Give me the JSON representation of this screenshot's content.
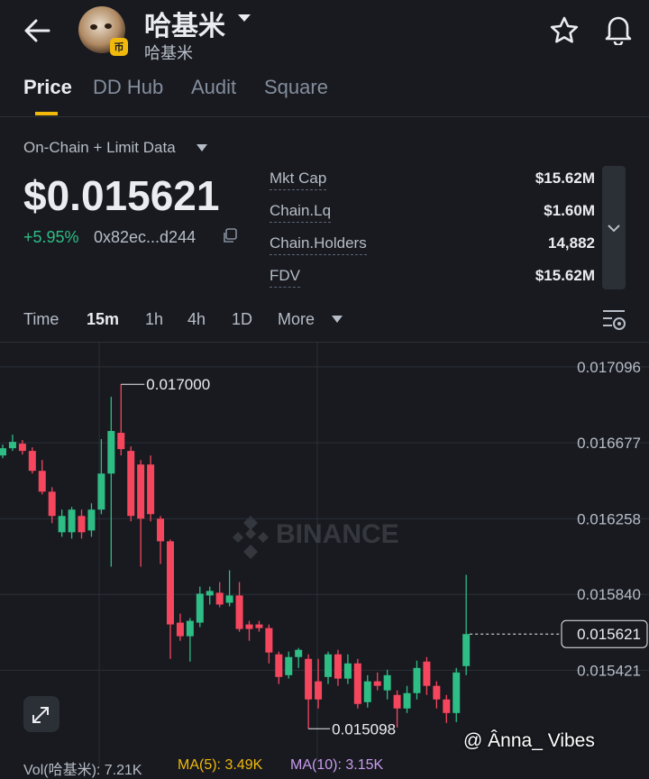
{
  "header": {
    "title": "哈基米",
    "subtitle": "哈基米"
  },
  "tabs": [
    "Price",
    "DD Hub",
    "Audit",
    "Square"
  ],
  "data_source": "On-Chain + Limit Data",
  "price": "$0.015621",
  "change": "+5.95%",
  "address": "0x82ec...d244",
  "stats": [
    {
      "label": "Mkt Cap",
      "value": "$15.62M"
    },
    {
      "label": "Chain.Lq",
      "value": "$1.60M"
    },
    {
      "label": "Chain.Holders",
      "value": "14,882"
    },
    {
      "label": "FDV",
      "value": "$15.62M"
    }
  ],
  "intervals": [
    "Time",
    "15m",
    "1h",
    "4h",
    "1D",
    "More"
  ],
  "chart_data": {
    "type": "candlestick",
    "watermark": "BINANCE",
    "open": [
      0.016607,
      0.016647,
      0.016672,
      0.016632,
      0.016522,
      0.016407,
      0.016183,
      0.016183,
      0.016273,
      0.016193,
      0.016308,
      0.016507,
      0.016732,
      0.016632,
      0.016557,
      0.016557,
      0.016258,
      0.016133,
      0.015684,
      0.015609,
      0.015684,
      0.015834,
      0.015849,
      0.015794,
      0.015834,
      0.015674,
      0.015674,
      0.015654,
      0.015509,
      0.015394,
      0.015494,
      0.015484,
      0.01536,
      0.015384,
      0.015509,
      0.015375,
      0.015459,
      0.015245,
      0.01536,
      0.01531,
      0.015285,
      0.01521,
      0.015295,
      0.015469,
      0.015335,
      0.01526,
      0.015185,
      0.015444
    ],
    "high": [
      0.016667,
      0.016722,
      0.016692,
      0.016652,
      0.016582,
      0.016432,
      0.016308,
      0.016323,
      0.016308,
      0.016343,
      0.016697,
      0.016931,
      0.017,
      0.016657,
      0.016582,
      0.016607,
      0.016273,
      0.016143,
      0.015734,
      0.015709,
      0.015883,
      0.015883,
      0.015908,
      0.015973,
      0.015908,
      0.015694,
      0.015694,
      0.015674,
      0.015524,
      0.015524,
      0.015544,
      0.015509,
      0.015484,
      0.015524,
      0.015534,
      0.015509,
      0.015484,
      0.015394,
      0.015409,
      0.015424,
      0.01531,
      0.015335,
      0.015474,
      0.015494,
      0.01536,
      0.015285,
      0.015434,
      0.015948
    ],
    "low": [
      0.016592,
      0.016632,
      0.016612,
      0.016507,
      0.016392,
      0.016233,
      0.016158,
      0.016148,
      0.016148,
      0.016158,
      0.016283,
      0.015993,
      0.016607,
      0.016243,
      0.015993,
      0.016243,
      0.016008,
      0.015484,
      0.015584,
      0.015469,
      0.015659,
      0.015784,
      0.015769,
      0.015774,
      0.015634,
      0.015584,
      0.015634,
      0.015459,
      0.015345,
      0.015375,
      0.015434,
      0.015098,
      0.01521,
      0.015345,
      0.015335,
      0.015345,
      0.01521,
      0.015215,
      0.01531,
      0.01526,
      0.015105,
      0.015185,
      0.01526,
      0.015285,
      0.01521,
      0.01513,
      0.015135,
      0.015394
    ],
    "close": [
      0.016647,
      0.016682,
      0.016632,
      0.016522,
      0.016407,
      0.016273,
      0.016273,
      0.016308,
      0.016183,
      0.016308,
      0.016507,
      0.016742,
      0.016642,
      0.016273,
      0.016258,
      0.016283,
      0.016133,
      0.015674,
      0.015609,
      0.015694,
      0.015844,
      0.015859,
      0.015784,
      0.015834,
      0.015649,
      0.015649,
      0.015654,
      0.015519,
      0.015384,
      0.015494,
      0.015534,
      0.01526,
      0.01526,
      0.015509,
      0.015375,
      0.015459,
      0.015235,
      0.01536,
      0.015335,
      0.015394,
      0.01521,
      0.015295,
      0.015434,
      0.015335,
      0.01526,
      0.015185,
      0.015409,
      0.015621
    ],
    "up_color": "#2ebd85",
    "down_color": "#f6465d",
    "ylim": [
      0.01499,
      0.01723
    ],
    "yticks": [
      0.017096,
      0.016677,
      0.016258,
      {
        "value": 0.01584,
        "label": "0.015840"
      },
      0.015421
    ],
    "grid": true,
    "high_label": "0.017000",
    "low_label": "0.015098",
    "last_price": 0.015621
  },
  "volume": {
    "label": "Vol(哈基米): 7.21K",
    "ma5": "MA(5): 3.49K",
    "ma10": "MA(10): 3.15K"
  },
  "credit": "@ Ânna_ Vibes"
}
